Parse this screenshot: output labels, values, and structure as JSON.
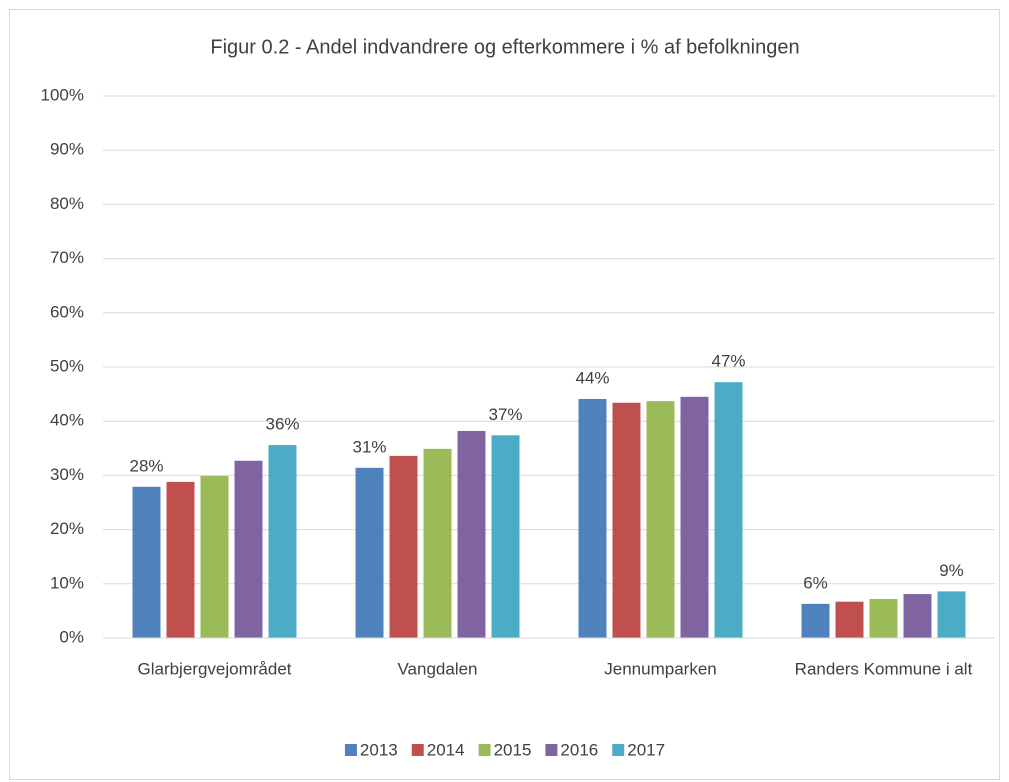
{
  "chart_data": {
    "type": "bar",
    "title": "Figur 0.2 - Andel indvandrere og efterkommere i % af befolkningen",
    "categories": [
      "Glarbjergvejområdet",
      "Vangdalen",
      "Jennumparken",
      "Randers Kommune i alt"
    ],
    "series": [
      {
        "name": "2013",
        "color": "#4f81bd",
        "values": [
          27.9,
          31.4,
          44.1,
          6.3
        ],
        "value_labels": [
          "28%",
          "31%",
          "44%",
          "6%"
        ]
      },
      {
        "name": "2014",
        "color": "#c0504d",
        "values": [
          28.8,
          33.6,
          43.4,
          6.7
        ]
      },
      {
        "name": "2015",
        "color": "#9bbb59",
        "values": [
          29.9,
          34.9,
          43.7,
          7.2
        ]
      },
      {
        "name": "2016",
        "color": "#8064a2",
        "values": [
          32.7,
          38.2,
          44.5,
          8.1
        ]
      },
      {
        "name": "2017",
        "color": "#4bacc6",
        "values": [
          35.6,
          37.4,
          47.2,
          8.6
        ],
        "value_labels": [
          "36%",
          "37%",
          "47%",
          "9%"
        ]
      }
    ],
    "ylim": [
      0,
      100
    ],
    "yticks": [
      {
        "value": 0,
        "label": "0%"
      },
      {
        "value": 10,
        "label": "10%"
      },
      {
        "value": 20,
        "label": "20%"
      },
      {
        "value": 30,
        "label": "30%"
      },
      {
        "value": 40,
        "label": "40%"
      },
      {
        "value": 50,
        "label": "50%"
      },
      {
        "value": 60,
        "label": "60%"
      },
      {
        "value": 70,
        "label": "70%"
      },
      {
        "value": 80,
        "label": "80%"
      },
      {
        "value": 90,
        "label": "90%"
      },
      {
        "value": 100,
        "label": "100%"
      }
    ],
    "grid": true,
    "legend": "bottom"
  }
}
